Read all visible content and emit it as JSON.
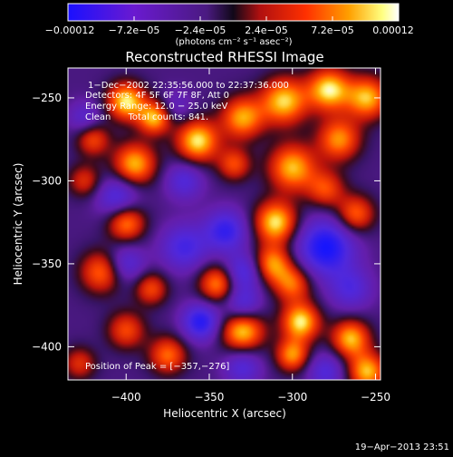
{
  "chart_data": {
    "type": "heatmap",
    "title": "Reconstructed RHESSI Image",
    "xlabel": "Heliocentric X (arcsec)",
    "ylabel": "Heliocentric Y (arcsec)",
    "xlim": [
      -435,
      -247
    ],
    "ylim": [
      -420,
      -232
    ],
    "x_ticks": [
      -400,
      -350,
      -300,
      -250
    ],
    "y_ticks": [
      -250,
      -300,
      -350,
      -400
    ],
    "x_tick_labels": [
      "−400",
      "−350",
      "−300",
      "−250"
    ],
    "y_tick_labels": [
      "−250",
      "−300",
      "−350",
      "−400"
    ],
    "colorbar": {
      "min": -0.00012,
      "max": 0.00012,
      "tick_labels": [
        "−0.00012",
        "−7.2e−05",
        "−2.4e−05",
        "2.4e−05",
        "7.2e−05",
        "0.00012"
      ],
      "tick_values": [
        -0.00012,
        -7.2e-05,
        -2.4e-05,
        2.4e-05,
        7.2e-05,
        0.00012
      ],
      "unit_label": "(photons cm⁻² s⁻¹ asec⁻²)"
    },
    "annotations": [
      "1−Dec−2002 22:35:56.000 to 22:37:36.000",
      "Detectors: 4F 5F 6F 7F 8F, Att 0",
      "Energy Range: 12.0 − 25.0 keV",
      "Clean      Total counts: 841."
    ],
    "peak_label": "Position of Peak = [−357,−276]",
    "peak": [
      -357,
      -276
    ],
    "blobs": [
      {
        "x": -400,
        "y": -252,
        "v": 1.0,
        "s": 8
      },
      {
        "x": -383,
        "y": -262,
        "v": 0.9,
        "s": 7
      },
      {
        "x": -357,
        "y": -276,
        "v": 1.0,
        "s": 9
      },
      {
        "x": -330,
        "y": -262,
        "v": 0.85,
        "s": 9
      },
      {
        "x": -305,
        "y": -252,
        "v": 0.95,
        "s": 10
      },
      {
        "x": -278,
        "y": -245,
        "v": 1.0,
        "s": 9
      },
      {
        "x": -255,
        "y": -250,
        "v": 0.9,
        "s": 9
      },
      {
        "x": -272,
        "y": -275,
        "v": 0.8,
        "s": 9
      },
      {
        "x": -300,
        "y": -292,
        "v": 0.9,
        "s": 10
      },
      {
        "x": -335,
        "y": -290,
        "v": 0.6,
        "s": 7
      },
      {
        "x": -420,
        "y": -275,
        "v": 0.6,
        "s": 7
      },
      {
        "x": -395,
        "y": -290,
        "v": 0.9,
        "s": 9
      },
      {
        "x": -425,
        "y": -300,
        "v": 0.5,
        "s": 7
      },
      {
        "x": -280,
        "y": -305,
        "v": 0.6,
        "s": 8
      },
      {
        "x": -262,
        "y": -320,
        "v": 0.7,
        "s": 8
      },
      {
        "x": -310,
        "y": -325,
        "v": 1.0,
        "s": 9
      },
      {
        "x": -312,
        "y": -350,
        "v": 0.8,
        "s": 8
      },
      {
        "x": -400,
        "y": -325,
        "v": 0.8,
        "s": 8
      },
      {
        "x": -415,
        "y": -355,
        "v": 0.7,
        "s": 9
      },
      {
        "x": -385,
        "y": -365,
        "v": 0.6,
        "s": 7
      },
      {
        "x": -345,
        "y": -362,
        "v": 0.8,
        "s": 8
      },
      {
        "x": -300,
        "y": -362,
        "v": 0.7,
        "s": 8
      },
      {
        "x": -330,
        "y": -390,
        "v": 1.0,
        "s": 9
      },
      {
        "x": -295,
        "y": -385,
        "v": 1.0,
        "s": 8
      },
      {
        "x": -300,
        "y": -405,
        "v": 0.8,
        "s": 7
      },
      {
        "x": -265,
        "y": -395,
        "v": 0.9,
        "s": 8
      },
      {
        "x": -255,
        "y": -415,
        "v": 0.9,
        "s": 8
      },
      {
        "x": -375,
        "y": -405,
        "v": 0.7,
        "s": 8
      },
      {
        "x": -400,
        "y": -390,
        "v": 0.6,
        "s": 8
      },
      {
        "x": -428,
        "y": -410,
        "v": 0.5,
        "s": 7
      },
      {
        "x": -365,
        "y": -340,
        "v": -0.6,
        "s": 10
      },
      {
        "x": -340,
        "y": -330,
        "v": -0.7,
        "s": 9
      },
      {
        "x": -365,
        "y": -300,
        "v": -0.5,
        "s": 8
      },
      {
        "x": -405,
        "y": -310,
        "v": -0.6,
        "s": 9
      },
      {
        "x": -280,
        "y": -340,
        "v": -0.9,
        "s": 12
      },
      {
        "x": -265,
        "y": -365,
        "v": -0.5,
        "s": 9
      },
      {
        "x": -330,
        "y": -355,
        "v": -0.6,
        "s": 8
      },
      {
        "x": -330,
        "y": -375,
        "v": -0.6,
        "s": 8
      },
      {
        "x": -355,
        "y": -385,
        "v": -0.8,
        "s": 8
      },
      {
        "x": -330,
        "y": -412,
        "v": -0.5,
        "s": 8
      },
      {
        "x": -280,
        "y": -415,
        "v": -0.5,
        "s": 8
      },
      {
        "x": -425,
        "y": -262,
        "v": -0.4,
        "s": 7
      },
      {
        "x": -400,
        "y": -350,
        "v": -0.5,
        "s": 8
      },
      {
        "x": -370,
        "y": -255,
        "v": -0.3,
        "s": 7
      }
    ],
    "grid": false
  },
  "footer": {
    "timestamp": "19−Apr−2013 23:51"
  },
  "colors": {
    "background": "#000000",
    "text": "#ffffff",
    "negative_min": "#0000ff",
    "zero": "#000000",
    "positive_max": "#ffffff"
  }
}
